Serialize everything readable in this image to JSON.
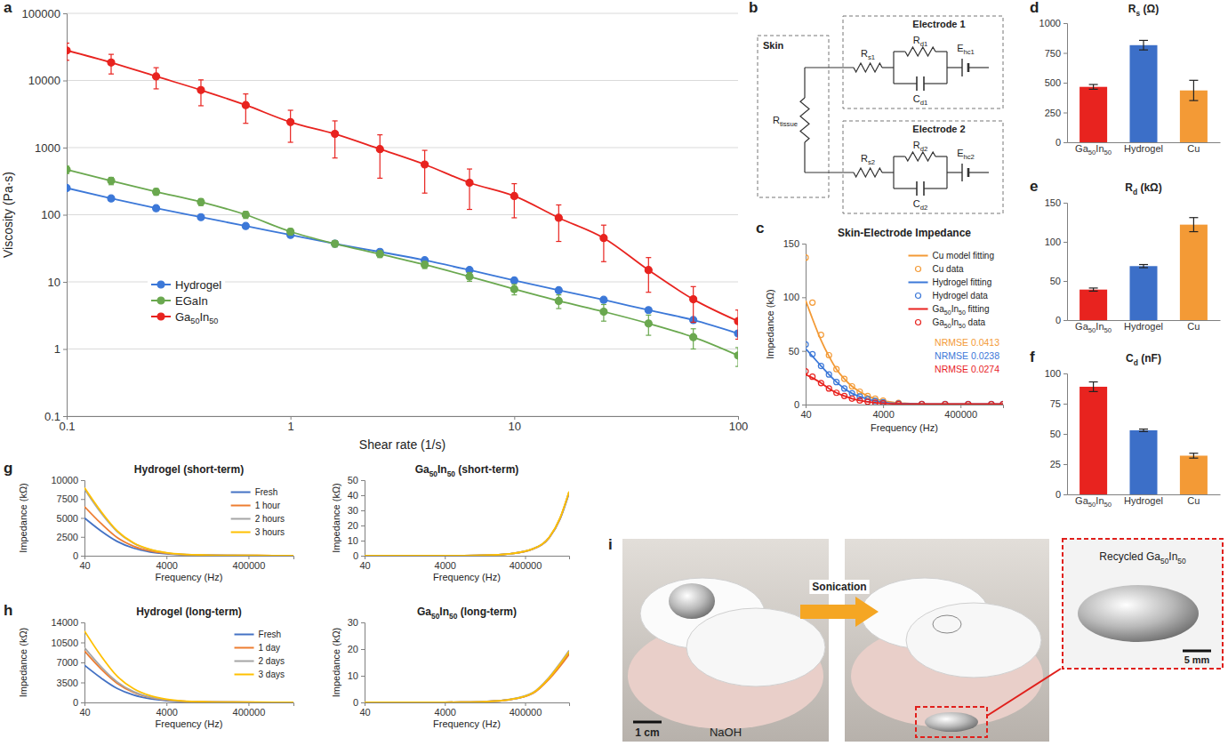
{
  "chart_data": [
    {
      "panel_label": "a",
      "type": "line",
      "marker": "circle",
      "log": true,
      "grid": true,
      "legend": "lower left",
      "xlabel": "Shear rate (1/s)",
      "ylabel": "Viscosity (Pa·s)",
      "x": [
        0.1,
        0.158,
        0.251,
        0.398,
        0.631,
        1,
        1.58,
        2.51,
        3.98,
        6.31,
        10,
        15.8,
        25.1,
        39.8,
        63.1,
        100
      ],
      "xlim": [
        0.1,
        100
      ],
      "xticks": [
        0.1,
        1,
        10,
        100
      ],
      "ylim": [
        0.1,
        100000
      ],
      "yticks": [
        0.1,
        1,
        10,
        100,
        1000,
        10000,
        100000
      ],
      "series": [
        {
          "name": "Hydrogel",
          "color": "#3c78d8",
          "values": [
            250,
            175,
            125,
            92,
            68,
            50,
            37,
            28,
            21,
            15,
            10.5,
            7.5,
            5.4,
            3.8,
            2.7,
            1.7
          ],
          "errors": [
            15,
            10,
            6,
            4,
            3,
            2,
            1.5,
            1,
            0.8,
            0.5,
            0.4,
            0.3,
            0.2,
            0.15,
            0.1,
            0.08
          ]
        },
        {
          "name": "EGaIn",
          "color": "#6aa84f",
          "values": [
            470,
            320,
            220,
            155,
            100,
            56,
            37,
            26,
            18,
            12,
            7.8,
            5.2,
            3.6,
            2.4,
            1.5,
            0.8
          ],
          "errors": [
            60,
            40,
            25,
            18,
            12,
            6,
            4,
            3,
            2.2,
            1.8,
            1.4,
            1.2,
            1.0,
            0.8,
            0.5,
            0.25
          ]
        },
        {
          "name": "Ga50In50",
          "color": "#e8231f",
          "values": [
            28000,
            18500,
            11500,
            7200,
            4300,
            2400,
            1600,
            950,
            560,
            300,
            190,
            90,
            45,
            15,
            5.5,
            2.6
          ],
          "errors": [
            8000,
            6000,
            4000,
            3000,
            2000,
            1200,
            900,
            600,
            350,
            180,
            100,
            50,
            25,
            8,
            3,
            1.2
          ]
        }
      ]
    },
    {
      "panel_label": "c",
      "type": "line",
      "title": "Skin-Electrode Impedance",
      "log": "x",
      "legend": "upper right",
      "xlabel": "Frequency (Hz)",
      "ylabel": "Impedance (kΩ)",
      "x": [
        40,
        60,
        100,
        160,
        250,
        400,
        630,
        1000,
        1600,
        2500,
        4000,
        10000,
        40000,
        160000,
        630000,
        2500000,
        5000000
      ],
      "xlim": [
        40,
        5000000
      ],
      "xticks": [
        40,
        4000,
        400000
      ],
      "ylim": [
        0,
        150
      ],
      "yticks": [
        0,
        50,
        100,
        150
      ],
      "series": [
        {
          "name": "Cu model fitting",
          "type": "line",
          "color": "#f39a36",
          "values": [
            97,
            80,
            60,
            45,
            33,
            24,
            17,
            12,
            8,
            5.5,
            3.6,
            1.6,
            0.6,
            0.3,
            0.2,
            0.2,
            0.2
          ]
        },
        {
          "name": "Cu data",
          "type": "scatter",
          "marker": "open-circle",
          "color": "#f39a36",
          "values": [
            137,
            95,
            65,
            46,
            33,
            24,
            17,
            12,
            8,
            5.5,
            3.6,
            1.6,
            0.6,
            0.3,
            0.2,
            0.2,
            0.2
          ]
        },
        {
          "name": "Hydrogel fitting",
          "type": "line",
          "color": "#3c78d8",
          "values": [
            52,
            45,
            36,
            28,
            21,
            15,
            10.5,
            7.5,
            5,
            3.4,
            2.2,
            1,
            0.6,
            0.5,
            0.5,
            0.5,
            0.5
          ]
        },
        {
          "name": "Hydrogel data",
          "type": "scatter",
          "marker": "open-circle",
          "color": "#3c78d8",
          "values": [
            56,
            47,
            36,
            28,
            21,
            15,
            10.5,
            7.5,
            5,
            3.4,
            2.2,
            1,
            0.6,
            0.5,
            0.5,
            0.5,
            0.5
          ]
        },
        {
          "name": "Ga50In50 fitting",
          "type": "line",
          "color": "#e8231f",
          "values": [
            28,
            25,
            20,
            15,
            11,
            8,
            5.5,
            3.8,
            2.6,
            1.8,
            1.2,
            0.6,
            0.4,
            0.4,
            0.4,
            0.4,
            0.4
          ]
        },
        {
          "name": "Ga50In50 data",
          "type": "scatter",
          "marker": "open-circle",
          "color": "#e8231f",
          "values": [
            31,
            26,
            20,
            15,
            11,
            8,
            5.5,
            3.8,
            2.6,
            1.8,
            1.2,
            0.6,
            0.4,
            0.4,
            0.4,
            0.4,
            0.4
          ]
        }
      ],
      "annotations": [
        {
          "text": "NRMSE 0.0413",
          "color": "#f39a36"
        },
        {
          "text": "NRMSE 0.0238",
          "color": "#3c78d8"
        },
        {
          "text": "NRMSE 0.0274",
          "color": "#e8231f"
        }
      ]
    },
    {
      "panel_label": "d",
      "type": "bar",
      "title": "Rs (Ω)",
      "categories": [
        "Ga50In50",
        "Hydrogel",
        "Cu"
      ],
      "values": [
        465,
        815,
        435
      ],
      "errors": [
        20,
        40,
        85
      ],
      "colors": [
        "#e8231f",
        "#3c6fc8",
        "#f39a36"
      ],
      "ylim": [
        0,
        1000
      ],
      "yticks": [
        0,
        250,
        500,
        750,
        1000
      ]
    },
    {
      "panel_label": "e",
      "type": "bar",
      "title": "Rd (kΩ)",
      "categories": [
        "Ga50In50",
        "Hydrogel",
        "Cu"
      ],
      "values": [
        39,
        69,
        122
      ],
      "errors": [
        2,
        2,
        9
      ],
      "colors": [
        "#e8231f",
        "#3c6fc8",
        "#f39a36"
      ],
      "ylim": [
        0,
        150
      ],
      "yticks": [
        0,
        50,
        100,
        150
      ]
    },
    {
      "panel_label": "f",
      "type": "bar",
      "title": "Cd (nF)",
      "categories": [
        "Ga50In50",
        "Hydrogel",
        "Cu"
      ],
      "values": [
        89,
        53,
        32
      ],
      "errors": [
        4,
        1,
        2
      ],
      "colors": [
        "#e8231f",
        "#3c6fc8",
        "#f39a36"
      ],
      "ylim": [
        0,
        100
      ],
      "yticks": [
        0,
        25,
        50,
        75,
        100
      ]
    },
    {
      "panel_label": "g",
      "type": "line",
      "title": "Hydrogel (short-term)",
      "log": "x",
      "legend": "upper right",
      "xlabel": "Frequency (Hz)",
      "ylabel": "Impedance (kΩ)",
      "x": [
        40,
        100,
        250,
        630,
        1600,
        4000,
        10000,
        40000,
        160000,
        630000,
        1600000,
        3000000,
        5000000
      ],
      "xlim": [
        40,
        5000000
      ],
      "xticks": [
        40,
        4000,
        400000
      ],
      "ylim": [
        0,
        10000
      ],
      "yticks": [
        0,
        2500,
        5000,
        7500,
        10000
      ],
      "series": [
        {
          "name": "Fresh",
          "color": "#4472c4",
          "values": [
            5000,
            3300,
            1900,
            1000,
            500,
            250,
            130,
            60,
            35,
            25,
            20,
            18,
            17
          ]
        },
        {
          "name": "1 hour",
          "color": "#ed7d31",
          "values": [
            6500,
            4300,
            2400,
            1250,
            620,
            300,
            150,
            70,
            40,
            28,
            22,
            20,
            19
          ]
        },
        {
          "name": "2 hours",
          "color": "#a5a5a5",
          "values": [
            8800,
            5700,
            3200,
            1650,
            800,
            380,
            180,
            80,
            45,
            30,
            24,
            22,
            21
          ]
        },
        {
          "name": "3 hours",
          "color": "#ffc000",
          "values": [
            9000,
            5900,
            3300,
            1700,
            830,
            390,
            185,
            82,
            46,
            31,
            25,
            23,
            22
          ]
        }
      ]
    },
    {
      "type": "line",
      "title": "Ga50In50 (short-term)",
      "log": "x",
      "xlabel": "Frequency (Hz)",
      "ylabel": "Impedance (kΩ)",
      "x": [
        40,
        100,
        250,
        630,
        1600,
        4000,
        10000,
        40000,
        160000,
        630000,
        1600000,
        3000000,
        5000000
      ],
      "xlim": [
        40,
        5000000
      ],
      "xticks": [
        40,
        4000,
        400000
      ],
      "ylim": [
        0,
        50
      ],
      "yticks": [
        0,
        10,
        20,
        30,
        40,
        50
      ],
      "series": [
        {
          "color": "#4472c4",
          "values": [
            0.02,
            0.02,
            0.02,
            0.02,
            0.03,
            0.05,
            0.1,
            0.3,
            1.2,
            4.5,
            12,
            24.5,
            41.5
          ]
        },
        {
          "color": "#ed7d31",
          "values": [
            0.02,
            0.02,
            0.02,
            0.02,
            0.03,
            0.05,
            0.1,
            0.3,
            1.2,
            4.5,
            12,
            24.8,
            42
          ]
        },
        {
          "color": "#a5a5a5",
          "values": [
            0.02,
            0.02,
            0.02,
            0.02,
            0.03,
            0.05,
            0.1,
            0.3,
            1.2,
            4.6,
            12.1,
            25,
            42.2
          ]
        },
        {
          "color": "#ffc000",
          "values": [
            0.02,
            0.02,
            0.02,
            0.02,
            0.03,
            0.05,
            0.1,
            0.3,
            1.2,
            4.6,
            12.2,
            25.2,
            42.5
          ]
        }
      ]
    },
    {
      "panel_label": "h",
      "type": "line",
      "title": "Hydrogel (long-term)",
      "log": "x",
      "legend": "upper right",
      "xlabel": "Frequency (Hz)",
      "ylabel": "Impedance (kΩ)",
      "x": [
        40,
        100,
        250,
        630,
        1600,
        4000,
        10000,
        40000,
        160000,
        630000,
        1600000,
        3000000,
        5000000
      ],
      "xlim": [
        40,
        5000000
      ],
      "xticks": [
        40,
        4000,
        400000
      ],
      "ylim": [
        0,
        14000
      ],
      "yticks": [
        0,
        3500,
        7000,
        10500,
        14000
      ],
      "series": [
        {
          "name": "Fresh",
          "color": "#4472c4",
          "values": [
            6500,
            4300,
            2450,
            1300,
            640,
            310,
            155,
            70,
            40,
            28,
            22,
            20,
            19
          ]
        },
        {
          "name": "1 day",
          "color": "#ed7d31",
          "values": [
            9000,
            5900,
            3350,
            1750,
            860,
            410,
            200,
            88,
            48,
            32,
            25,
            23,
            22
          ]
        },
        {
          "name": "2 days",
          "color": "#a5a5a5",
          "values": [
            9600,
            6300,
            3600,
            1880,
            920,
            440,
            210,
            92,
            50,
            33,
            26,
            24,
            23
          ]
        },
        {
          "name": "3 days",
          "color": "#ffc000",
          "values": [
            12500,
            8200,
            4600,
            2400,
            1170,
            550,
            260,
            110,
            58,
            38,
            29,
            26,
            25
          ]
        }
      ]
    },
    {
      "type": "line",
      "title": "Ga50In50 (long-term)",
      "log": "x",
      "xlabel": "Frequency (Hz)",
      "ylabel": "Impedance (kΩ)",
      "x": [
        40,
        100,
        250,
        630,
        1600,
        4000,
        10000,
        40000,
        160000,
        630000,
        1600000,
        3000000,
        5000000
      ],
      "xlim": [
        40,
        5000000
      ],
      "xticks": [
        40,
        4000,
        400000
      ],
      "ylim": [
        0,
        30
      ],
      "yticks": [
        0,
        10,
        20,
        30
      ],
      "series": [
        {
          "color": "#4472c4",
          "values": [
            0.02,
            0.02,
            0.02,
            0.02,
            0.03,
            0.05,
            0.1,
            0.3,
            1,
            3.5,
            9,
            14,
            18.5
          ]
        },
        {
          "color": "#ed7d31",
          "values": [
            0.02,
            0.02,
            0.02,
            0.02,
            0.03,
            0.05,
            0.1,
            0.3,
            1,
            3.4,
            8.8,
            13.6,
            18
          ]
        },
        {
          "color": "#a5a5a5",
          "values": [
            0.02,
            0.02,
            0.02,
            0.02,
            0.03,
            0.05,
            0.1,
            0.3,
            1.1,
            3.7,
            9.5,
            14.8,
            19.5
          ]
        },
        {
          "color": "#ffc000",
          "values": [
            0.02,
            0.02,
            0.02,
            0.02,
            0.03,
            0.05,
            0.1,
            0.3,
            1.05,
            3.6,
            9.2,
            14.4,
            19
          ]
        }
      ]
    }
  ],
  "circuit": {
    "panel_label": "b",
    "skin": {
      "label": "Skin",
      "resistor": "Rtissue"
    },
    "electrodes": [
      {
        "label": "Electrode 1",
        "series_resistor": "Rs1",
        "parallel_resistor": "Rd1",
        "capacitor": "Cd1",
        "half_cell": "Ehc1"
      },
      {
        "label": "Electrode 2",
        "series_resistor": "Rs2",
        "parallel_resistor": "Rd2",
        "capacitor": "Cd2",
        "half_cell": "Ehc2"
      }
    ]
  },
  "photos": {
    "panel_label": "i",
    "scale_bar": "1 cm",
    "solution": "NaOH",
    "process": "Sonication",
    "inset_label": "Recycled Ga50In50",
    "inset_scale_bar": "5 mm"
  }
}
